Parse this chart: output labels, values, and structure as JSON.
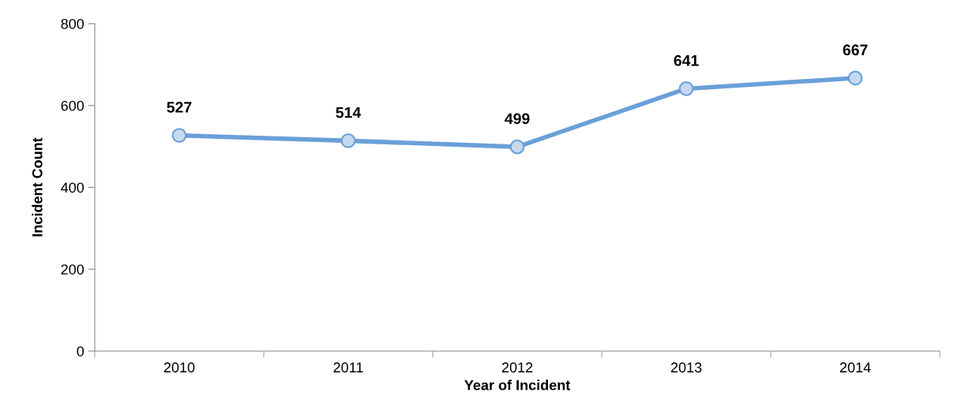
{
  "chart_data": {
    "type": "line",
    "xlabel": "Year of Incident",
    "ylabel": "Incident Count",
    "categories": [
      "2010",
      "2011",
      "2012",
      "2013",
      "2014"
    ],
    "series": [
      {
        "color": "#6a9fd8",
        "values": [
          527,
          514,
          499,
          641,
          667
        ]
      }
    ],
    "ylim": [
      0,
      800
    ],
    "yticks": [
      0,
      200,
      400,
      600,
      800
    ],
    "data_labels": true,
    "marker": "circle",
    "line_style": "solid",
    "grid": false,
    "legend": false
  }
}
